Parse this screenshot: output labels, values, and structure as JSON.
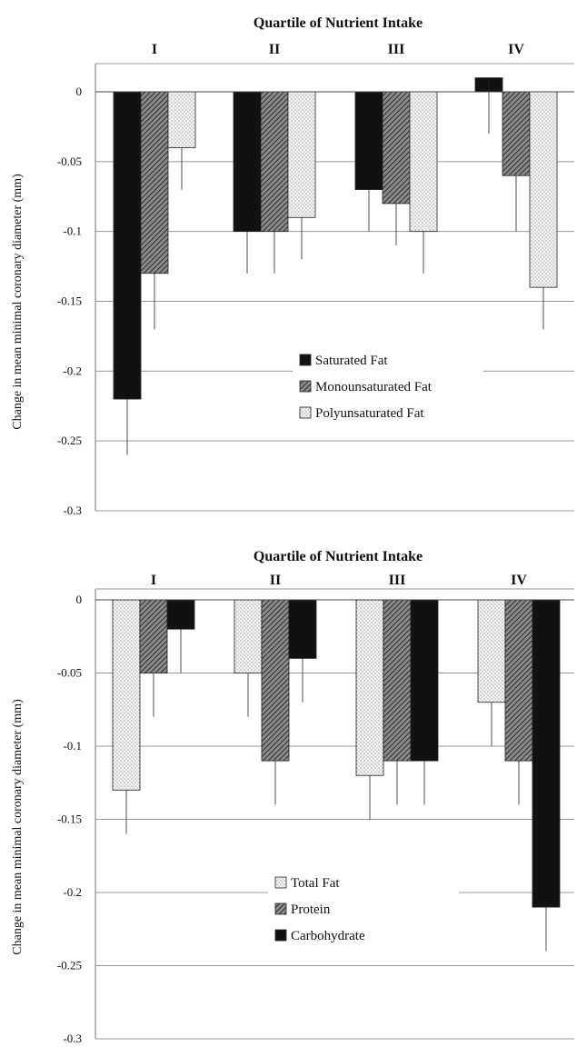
{
  "chart_data": [
    {
      "type": "bar",
      "title": "Quartile of Nutrient Intake",
      "xlabel": "",
      "ylabel": "Change in mean minimal coronary diameter (mm)",
      "categories": [
        "I",
        "II",
        "III",
        "IV"
      ],
      "ylim": [
        -0.3,
        0
      ],
      "yticks": [
        0,
        -0.05,
        -0.1,
        -0.15,
        -0.2,
        -0.25,
        -0.3
      ],
      "ytick_labels": [
        "0",
        "-0.05",
        "-0.1",
        "-0.15",
        "-0.2",
        "-0.25",
        "-0.3"
      ],
      "grid": true,
      "legend_position": "lower-middle",
      "series": [
        {
          "name": "Saturated Fat",
          "pattern": "solid",
          "color": "#111111",
          "values": [
            -0.22,
            -0.1,
            -0.07,
            0.01
          ],
          "error": [
            0.04,
            0.03,
            0.03,
            0.04
          ]
        },
        {
          "name": "Monounsaturated Fat",
          "pattern": "hatch",
          "color": "#6e6e6e",
          "values": [
            -0.13,
            -0.1,
            -0.08,
            -0.06
          ],
          "error": [
            0.04,
            0.03,
            0.03,
            0.04
          ]
        },
        {
          "name": "Polyunsaturated Fat",
          "pattern": "dots",
          "color": "#e6e6e6",
          "values": [
            -0.04,
            -0.09,
            -0.1,
            -0.14
          ],
          "error": [
            0.03,
            0.03,
            0.03,
            0.03
          ]
        }
      ]
    },
    {
      "type": "bar",
      "title": "Quartile of Nutrient Intake",
      "xlabel": "",
      "ylabel": "Change in mean minimal coronary diameter (mm)",
      "categories": [
        "I",
        "II",
        "III",
        "IV"
      ],
      "ylim": [
        -0.3,
        0
      ],
      "yticks": [
        0,
        -0.05,
        -0.1,
        -0.15,
        -0.2,
        -0.25,
        -0.3
      ],
      "ytick_labels": [
        "0",
        "-0.05",
        "-0.1",
        "-0.15",
        "-0.2",
        "-0.25",
        "-0.3"
      ],
      "grid": true,
      "legend_position": "lower-middle",
      "series": [
        {
          "name": "Total Fat",
          "pattern": "dots",
          "color": "#e6e6e6",
          "values": [
            -0.13,
            -0.05,
            -0.12,
            -0.07
          ],
          "error": [
            0.03,
            0.03,
            0.03,
            0.03
          ]
        },
        {
          "name": "Protein",
          "pattern": "hatch",
          "color": "#6e6e6e",
          "values": [
            -0.05,
            -0.11,
            -0.11,
            -0.11
          ],
          "error": [
            0.03,
            0.03,
            0.03,
            0.03
          ]
        },
        {
          "name": "Carbohydrate",
          "pattern": "solid",
          "color": "#111111",
          "values": [
            -0.02,
            -0.04,
            -0.11,
            -0.21
          ],
          "error": [
            0.03,
            0.03,
            0.03,
            0.03
          ]
        }
      ]
    }
  ]
}
